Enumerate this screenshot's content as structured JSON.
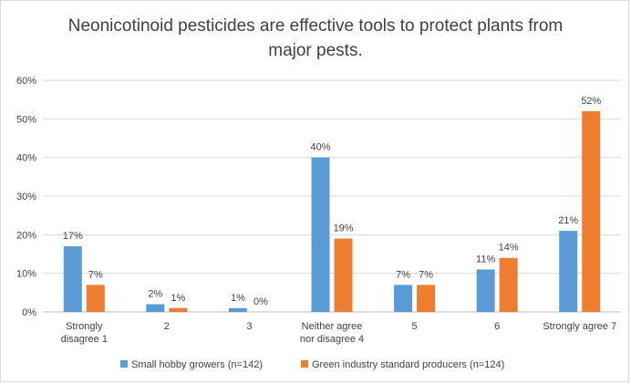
{
  "chart_data": {
    "type": "bar",
    "title": "Neonicotinoid pesticides are effective tools to protect plants from major pests.",
    "categories": [
      [
        "Strongly",
        "disagree 1"
      ],
      [
        "2"
      ],
      [
        "3"
      ],
      [
        "Neither agree",
        "nor disagree 4"
      ],
      [
        "5"
      ],
      [
        "6"
      ],
      [
        "Strongly agree 7"
      ]
    ],
    "series": [
      {
        "name": "Small hobby growers (n=142)",
        "color": "#5b9bd5",
        "values": [
          17,
          2,
          1,
          40,
          7,
          11,
          21
        ],
        "labels": [
          "17%",
          "2%",
          "1%",
          "40%",
          "7%",
          "11%",
          "21%"
        ]
      },
      {
        "name": "Green industry standard producers (n=124)",
        "color": "#ed7d31",
        "values": [
          7,
          1,
          0,
          19,
          7,
          14,
          52
        ],
        "labels": [
          "7%",
          "1%",
          "0%",
          "19%",
          "7%",
          "14%",
          "52%"
        ]
      }
    ],
    "ylim": [
      0,
      60
    ],
    "yticks": [
      "0%",
      "10%",
      "20%",
      "30%",
      "40%",
      "50%",
      "60%"
    ],
    "grid": true,
    "legend": "bottom"
  }
}
